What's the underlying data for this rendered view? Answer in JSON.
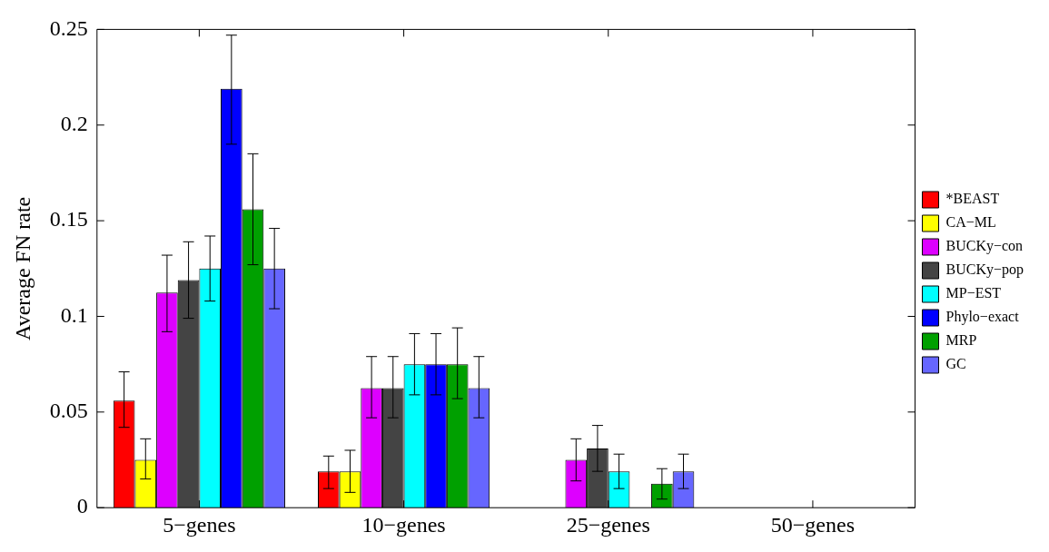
{
  "chart_data": {
    "type": "bar",
    "ylabel": "Average FN rate",
    "categories": [
      "5−genes",
      "10−genes",
      "25−genes",
      "50−genes"
    ],
    "ylim": [
      0,
      0.25
    ],
    "yticks": [
      0,
      0.05,
      0.1,
      0.15,
      0.2,
      0.25
    ],
    "grid": false,
    "legend": "right",
    "series": [
      {
        "name": "*BEAST",
        "color": "#ff0000",
        "values": [
          0.056,
          0.019,
          0,
          0
        ],
        "errors": [
          [
            0.042,
            0.071
          ],
          [
            0.01,
            0.027
          ],
          null,
          null
        ]
      },
      {
        "name": "CA−ML",
        "color": "#ffff00",
        "values": [
          0.025,
          0.019,
          0,
          0
        ],
        "errors": [
          [
            0.015,
            0.036
          ],
          [
            0.008,
            0.03
          ],
          null,
          null
        ]
      },
      {
        "name": "BUCKy−con",
        "color": "#dd00ff",
        "values": [
          0.1125,
          0.0625,
          0.025,
          0
        ],
        "errors": [
          [
            0.092,
            0.132
          ],
          [
            0.047,
            0.079
          ],
          [
            0.014,
            0.036
          ],
          null
        ]
      },
      {
        "name": "BUCKy−pop",
        "color": "#444444",
        "values": [
          0.119,
          0.0625,
          0.031,
          0
        ],
        "errors": [
          [
            0.099,
            0.139
          ],
          [
            0.047,
            0.079
          ],
          [
            0.019,
            0.043
          ],
          null
        ]
      },
      {
        "name": "MP−EST",
        "color": "#00ffff",
        "values": [
          0.125,
          0.075,
          0.019,
          0
        ],
        "errors": [
          [
            0.108,
            0.142
          ],
          [
            0.059,
            0.091
          ],
          [
            0.01,
            0.028
          ],
          null
        ]
      },
      {
        "name": "Phylo−exact",
        "color": "#0000ff",
        "values": [
          0.219,
          0.075,
          0,
          0
        ],
        "errors": [
          [
            0.19,
            0.247
          ],
          [
            0.059,
            0.091
          ],
          null,
          null
        ]
      },
      {
        "name": "MRP",
        "color": "#00a000",
        "values": [
          0.156,
          0.075,
          0.0125,
          0
        ],
        "errors": [
          [
            0.127,
            0.185
          ],
          [
            0.057,
            0.094
          ],
          [
            0.0045,
            0.0204
          ],
          null
        ]
      },
      {
        "name": "GC",
        "color": "#6666ff",
        "values": [
          0.125,
          0.0625,
          0.019,
          0
        ],
        "errors": [
          [
            0.104,
            0.146
          ],
          [
            0.047,
            0.079
          ],
          [
            0.01,
            0.028
          ],
          null
        ]
      }
    ]
  }
}
